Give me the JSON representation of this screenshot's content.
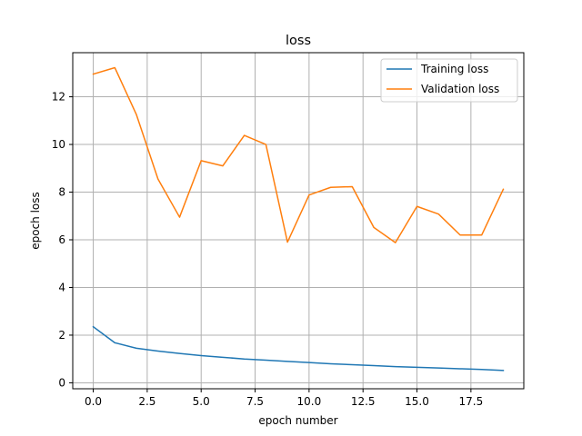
{
  "chart_data": {
    "type": "line",
    "title": "loss",
    "xlabel": "epoch number",
    "ylabel": "epoch loss",
    "xlim": [
      -0.95,
      19.95
    ],
    "ylim": [
      -0.25,
      13.85
    ],
    "xticks": [
      0,
      2.5,
      5,
      7.5,
      10,
      12.5,
      15,
      17.5
    ],
    "xtick_labels": [
      "0.0",
      "2.5",
      "5.0",
      "7.5",
      "10.0",
      "12.5",
      "15.0",
      "17.5"
    ],
    "yticks": [
      0,
      2,
      4,
      6,
      8,
      10,
      12
    ],
    "ytick_labels": [
      "0",
      "2",
      "4",
      "6",
      "8",
      "10",
      "12"
    ],
    "grid": true,
    "legend_position": "top-right",
    "x": [
      0,
      1,
      2,
      3,
      4,
      5,
      6,
      7,
      8,
      9,
      10,
      11,
      12,
      13,
      14,
      15,
      16,
      17,
      18,
      19
    ],
    "series": [
      {
        "name": "Training loss",
        "color": "#1f77b4",
        "values": [
          2.35,
          1.68,
          1.45,
          1.33,
          1.23,
          1.14,
          1.07,
          1.0,
          0.95,
          0.9,
          0.85,
          0.8,
          0.76,
          0.72,
          0.68,
          0.65,
          0.62,
          0.59,
          0.56,
          0.52
        ]
      },
      {
        "name": "Validation loss",
        "color": "#ff7f0e",
        "values": [
          12.95,
          13.22,
          11.25,
          8.55,
          6.95,
          9.32,
          9.1,
          10.38,
          10.0,
          5.9,
          7.88,
          8.2,
          8.23,
          6.52,
          5.88,
          7.4,
          7.08,
          6.2,
          6.2,
          8.12
        ]
      }
    ]
  }
}
